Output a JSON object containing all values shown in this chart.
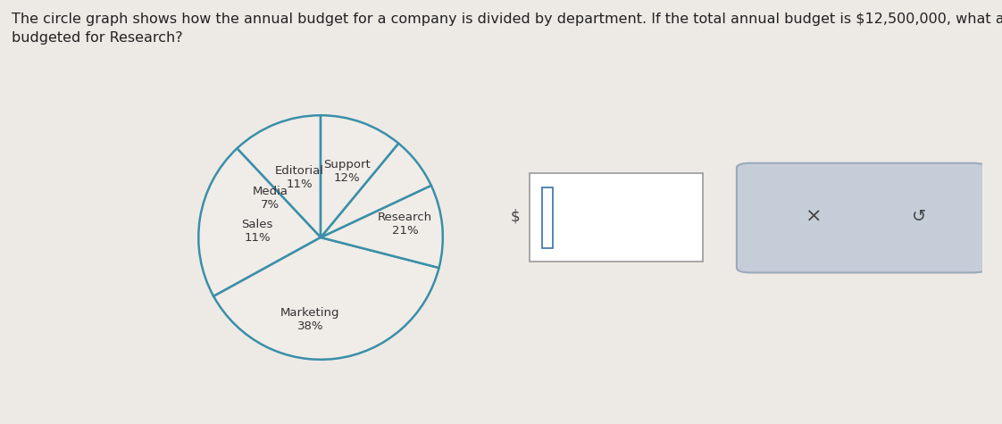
{
  "title": "The circle graph shows how the annual budget for a company is divided by department. If the total annual budget is $12,500,000, what amount is\nbudgeted for Research?",
  "slices": [
    {
      "label": "Support\n12%",
      "pct": 12,
      "color": "#f0ece8"
    },
    {
      "label": "Research\n21%",
      "pct": 21,
      "color": "#f0ece8"
    },
    {
      "label": "Marketing\n38%",
      "pct": 38,
      "color": "#f0ece8"
    },
    {
      "label": "Sales\n11%",
      "pct": 11,
      "color": "#f0ece8"
    },
    {
      "label": "Media\n7%",
      "pct": 7,
      "color": "#f0ece8"
    },
    {
      "label": "Editorial\n11%",
      "pct": 11,
      "color": "#f0ece8"
    }
  ],
  "pie_edge_color": "#3a8fa8",
  "pie_linewidth": 1.8,
  "label_fontsize": 9.5,
  "label_color": "#333333",
  "bg_color": "#edeae6",
  "text_color": "#222222",
  "title_fontsize": 11.5,
  "startangle": 90,
  "input_box_color": "#ffffff",
  "input_border_color": "#999999",
  "btn_bg_color": "#c5cdd8",
  "btn_border_color": "#9aaabb",
  "cursor_color": "#3a6fa8"
}
